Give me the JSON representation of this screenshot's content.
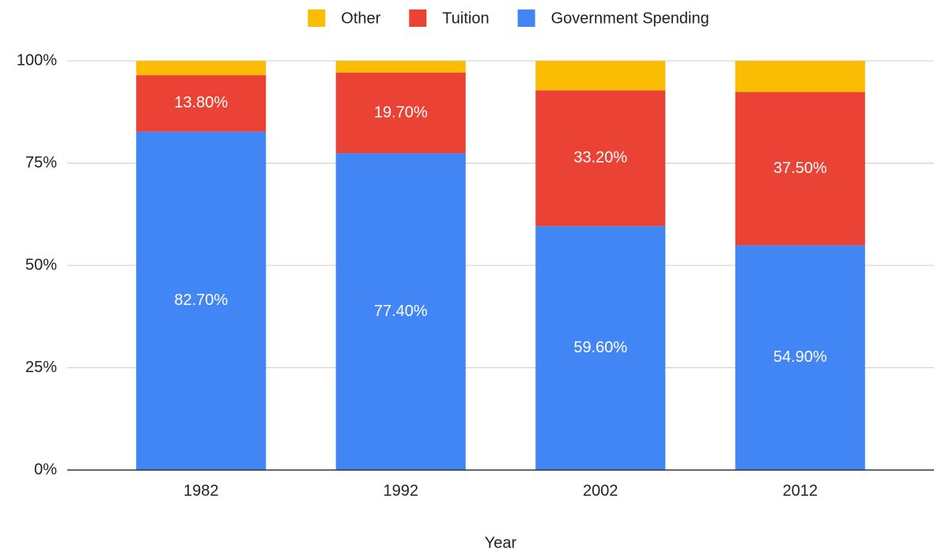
{
  "chart_data": {
    "type": "stacked_bar",
    "x_label": "Year",
    "categories": [
      "1982",
      "1992",
      "2002",
      "2012"
    ],
    "series": [
      {
        "name": "Government Spending",
        "color": "#4285f4",
        "values": [
          82.7,
          77.4,
          59.6,
          54.9
        ],
        "value_labels": [
          "82.70%",
          "77.40%",
          "59.60%",
          "54.90%"
        ]
      },
      {
        "name": "Tuition",
        "color": "#ea4335",
        "values": [
          13.8,
          19.7,
          33.2,
          37.5
        ],
        "value_labels": [
          "13.80%",
          "19.70%",
          "33.20%",
          "37.50%"
        ]
      },
      {
        "name": "Other",
        "color": "#fbbc04",
        "values": [
          3.5,
          2.9,
          7.2,
          7.6
        ]
      }
    ],
    "ylim": [
      0,
      100
    ],
    "yticks": [
      {
        "value": 0,
        "label": "0%"
      },
      {
        "value": 25,
        "label": "25%"
      },
      {
        "value": 50,
        "label": "50%"
      },
      {
        "value": 75,
        "label": "75%"
      },
      {
        "value": 100,
        "label": "100%"
      }
    ],
    "grid": true,
    "legend": "top"
  }
}
